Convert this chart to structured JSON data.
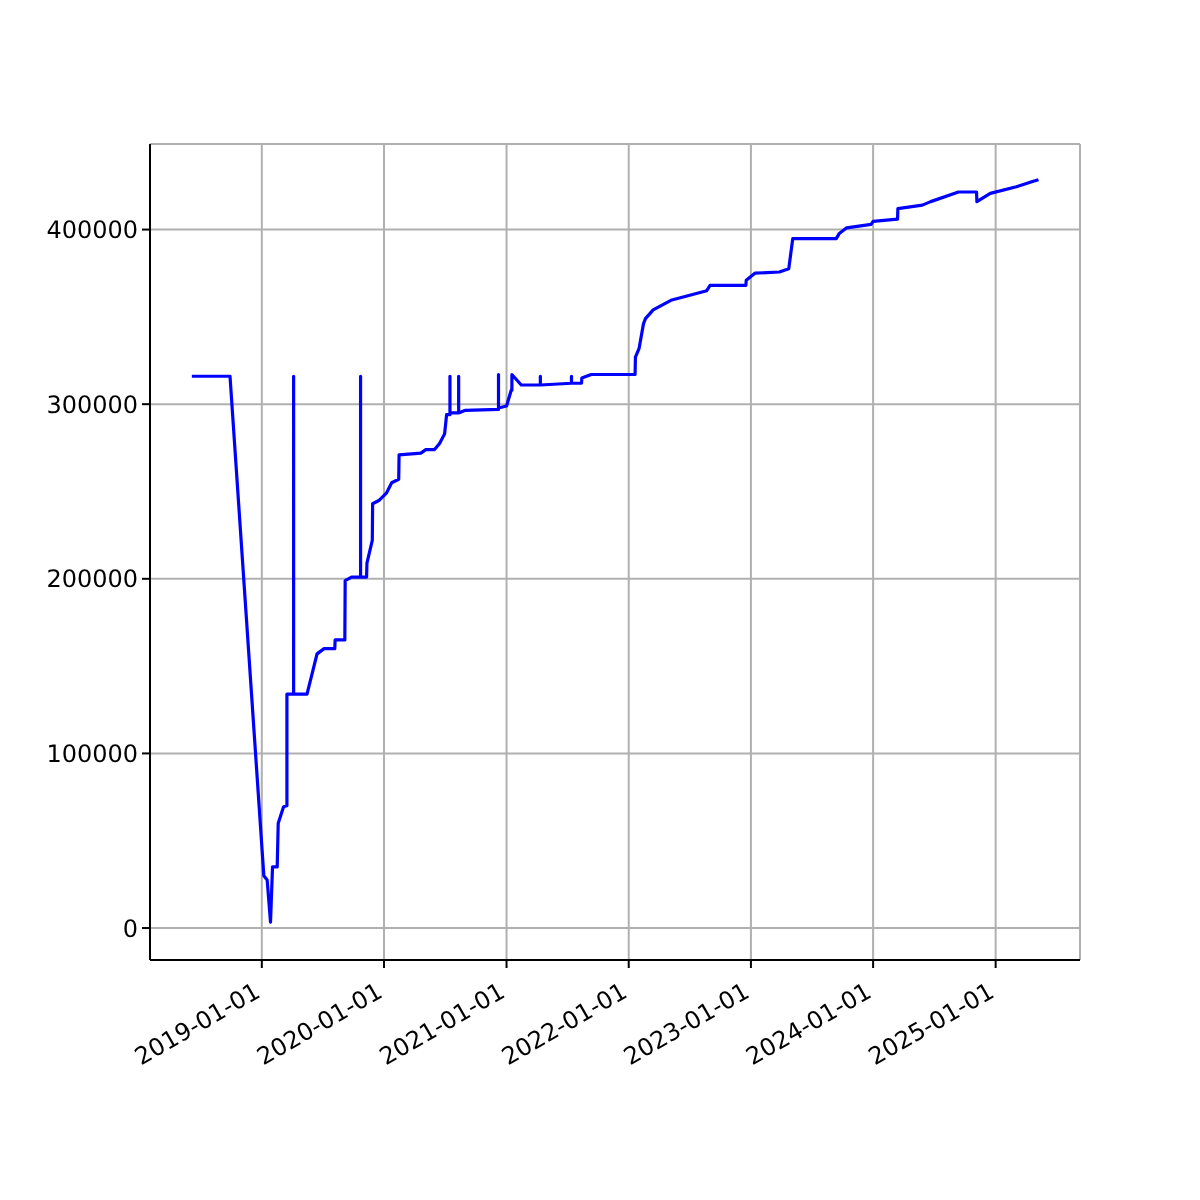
{
  "chart_data": {
    "type": "line",
    "x": [
      "2018-06-06",
      "2018-09-28",
      "2019-01-07",
      "2019-01-17",
      "2019-01-27",
      "2019-02-02",
      "2019-02-16",
      "2019-02-19",
      "2019-03-07",
      "2019-03-17",
      "2019-03-17",
      "2019-04-06",
      "2019-04-06",
      "2019-04-06",
      "2019-05-16",
      "2019-06-15",
      "2019-07-06",
      "2019-08-07",
      "2019-08-08",
      "2019-09-06",
      "2019-09-07",
      "2019-09-26",
      "2019-10-23",
      "2019-10-23",
      "2019-10-23",
      "2019-11-10",
      "2019-11-11",
      "2019-11-27",
      "2019-11-28",
      "2019-12-18",
      "2020-01-08",
      "2020-01-24",
      "2020-02-14",
      "2020-02-15",
      "2020-04-20",
      "2020-05-05",
      "2020-05-31",
      "2020-06-15",
      "2020-06-30",
      "2020-07-06",
      "2020-07-16",
      "2020-07-16",
      "2020-07-16",
      "2020-08-11",
      "2020-08-11",
      "2020-08-11",
      "2020-08-31",
      "2020-12-08",
      "2020-12-08",
      "2020-12-08",
      "2021-01-01",
      "2021-01-15",
      "2021-01-17",
      "2021-01-17",
      "2021-02-14",
      "2021-04-12",
      "2021-04-12",
      "2021-04-12",
      "2021-07-14",
      "2021-07-14",
      "2021-07-14",
      "2021-08-13",
      "2021-08-14",
      "2021-09-11",
      "2022-01-20",
      "2022-01-21",
      "2022-02-01",
      "2022-02-14",
      "2022-02-20",
      "2022-03-15",
      "2022-05-07",
      "2022-08-22",
      "2022-09-01",
      "2022-12-17",
      "2022-12-18",
      "2023-01-13",
      "2023-03-27",
      "2023-04-24",
      "2023-05-06",
      "2023-09-13",
      "2023-09-22",
      "2023-10-14",
      "2023-12-26",
      "2024-01-01",
      "2024-03-14",
      "2024-03-15",
      "2024-05-27",
      "2024-06-21",
      "2024-09-12",
      "2024-11-05",
      "2024-11-06",
      "2024-12-16",
      "2025-03-04",
      "2025-04-21",
      "2025-05-09"
    ],
    "series": [
      {
        "color": "#0000ff",
        "values": [
          316000,
          316000,
          30000,
          27500,
          3400,
          35000,
          35000,
          60000,
          69500,
          70000,
          134000,
          134000,
          316000,
          134000,
          134000,
          157000,
          160000,
          160000,
          165000,
          165000,
          199000,
          201000,
          201000,
          316000,
          201000,
          201000,
          209000,
          222000,
          243000,
          245000,
          249000,
          255000,
          257000,
          271000,
          272000,
          274000,
          274000,
          277500,
          283000,
          294000,
          294000,
          316000,
          295000,
          295000,
          316000,
          295000,
          296500,
          297000,
          317000,
          297800,
          299000,
          308000,
          308000,
          317000,
          311000,
          311000,
          316000,
          311000,
          312000,
          316000,
          312000,
          312000,
          315000,
          317000,
          317000,
          327000,
          332000,
          346000,
          349000,
          354000,
          359500,
          365000,
          368000,
          368000,
          371000,
          375000,
          375700,
          377500,
          394800,
          394800,
          397800,
          401000,
          403000,
          404700,
          406000,
          412000,
          414000,
          416000,
          421500,
          421500,
          416000,
          420700,
          424500,
          427500,
          428500
        ]
      }
    ],
    "xlim": [
      "2018-02-01",
      "2025-09-10"
    ],
    "xticks": [
      "2019-01-01",
      "2020-01-01",
      "2021-01-01",
      "2022-01-01",
      "2023-01-01",
      "2024-01-01",
      "2025-01-01"
    ],
    "ylim": [
      -18300,
      449000
    ],
    "yticks": [
      0,
      100000,
      200000,
      300000,
      400000
    ],
    "grid": true
  }
}
